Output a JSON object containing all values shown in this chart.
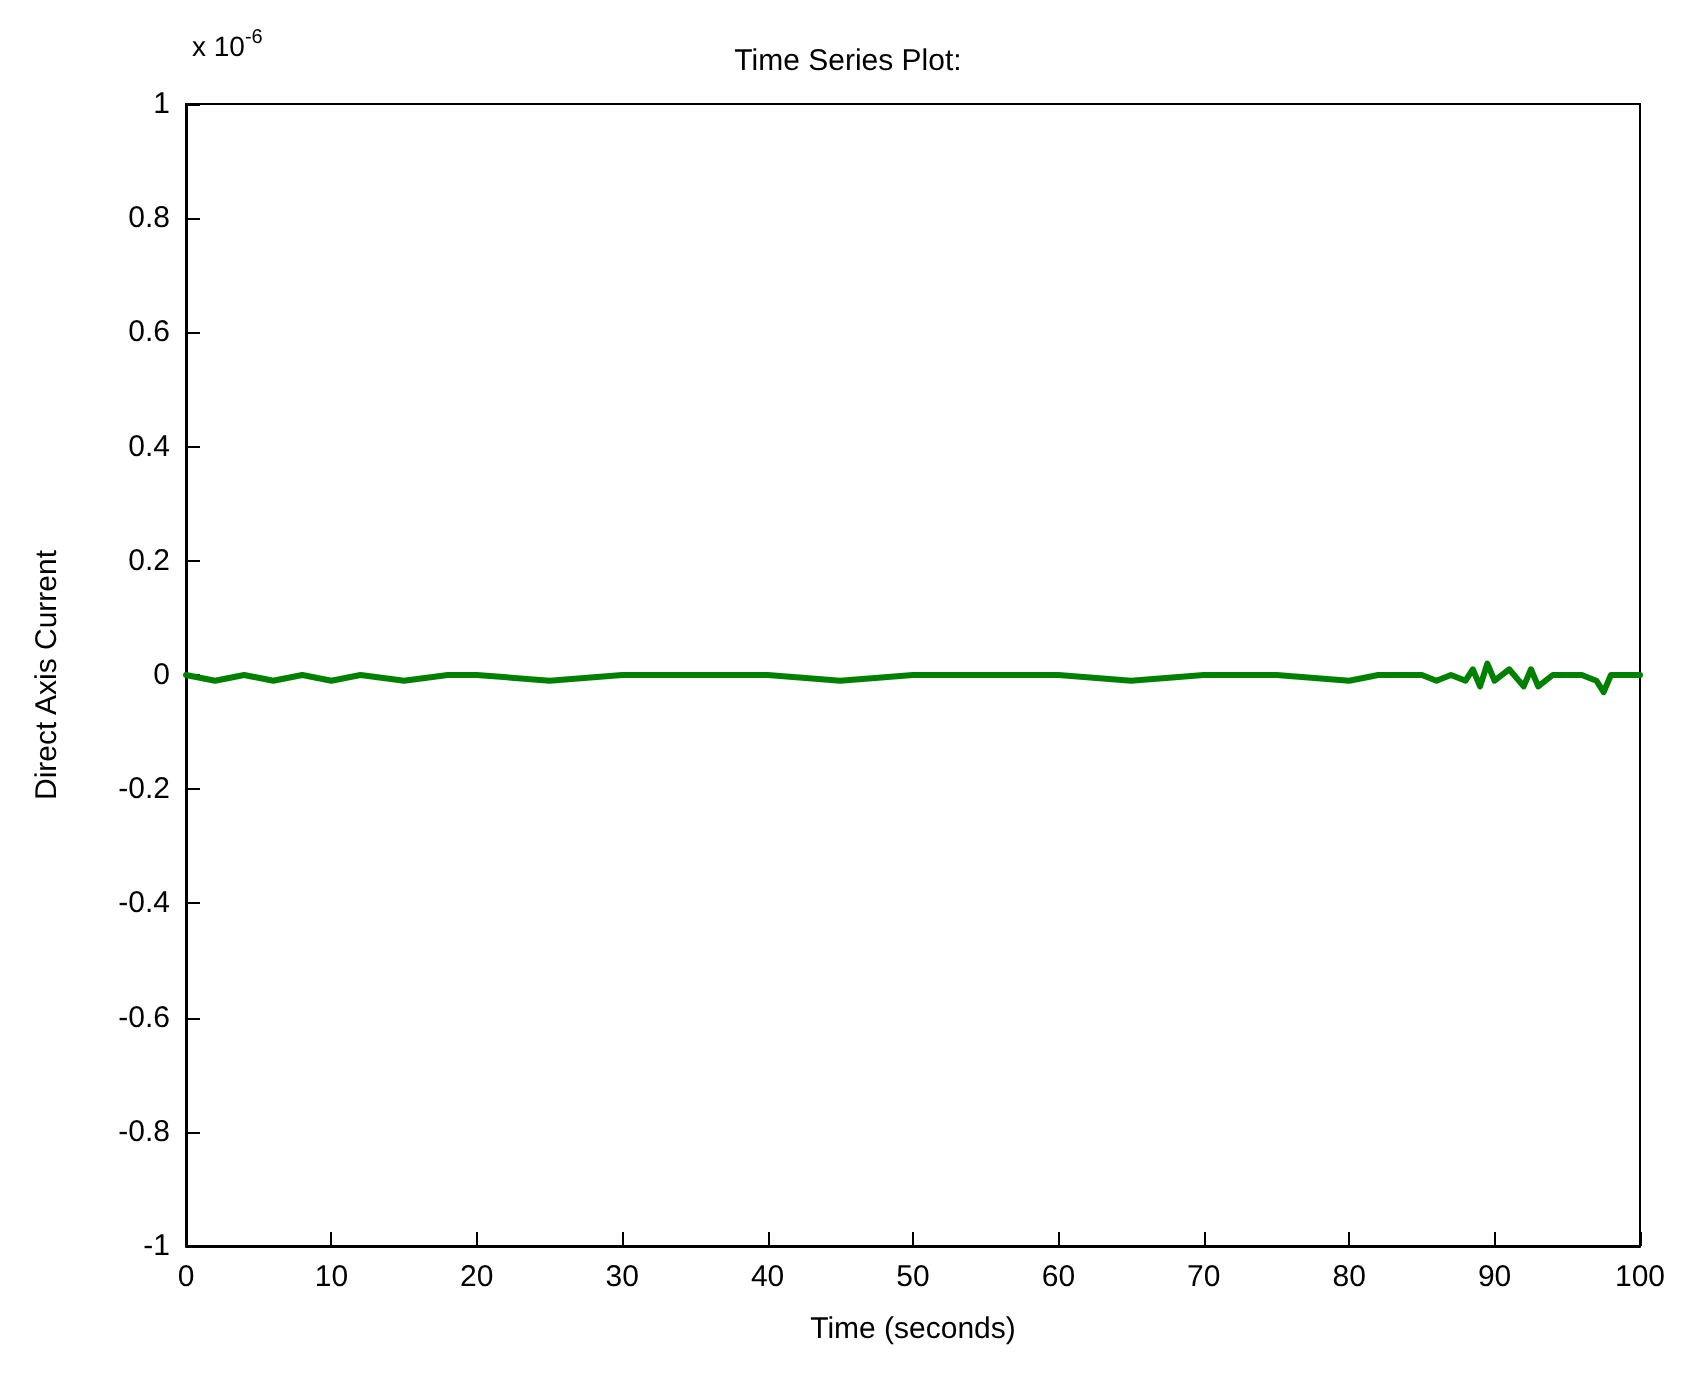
{
  "chart_data": {
    "type": "line",
    "title": "Time Series Plot:",
    "xlabel": "Time (seconds)",
    "ylabel": "Direct Axis Current",
    "annotations": [
      "x 10$^{-6}$"
    ],
    "x": [
      0,
      2,
      4,
      6,
      8,
      10,
      12,
      15,
      18,
      20,
      25,
      30,
      35,
      40,
      45,
      50,
      55,
      60,
      65,
      70,
      75,
      80,
      82,
      84,
      85,
      86,
      87,
      88,
      88.5,
      89,
      89.5,
      90,
      91,
      92,
      92.5,
      93,
      94,
      95,
      96,
      97,
      97.5,
      98,
      99,
      100
    ],
    "series": [
      {
        "color": "#008000",
        "values": [
          0,
          -0.01,
          0,
          -0.01,
          0,
          -0.01,
          0,
          -0.01,
          0,
          0,
          -0.01,
          0,
          0,
          0,
          -0.01,
          0,
          0,
          0,
          -0.01,
          0,
          0,
          -0.01,
          0,
          0,
          0,
          -0.01,
          0,
          -0.01,
          0.01,
          -0.02,
          0.02,
          -0.01,
          0.01,
          -0.02,
          0.01,
          -0.02,
          0,
          0,
          0,
          -0.01,
          -0.03,
          0,
          0,
          0
        ]
      }
    ],
    "xlim": [
      0,
      100
    ],
    "xticks": [
      0,
      10,
      20,
      30,
      40,
      50,
      60,
      70,
      80,
      90,
      100
    ],
    "ylim": [
      -1,
      1
    ],
    "yticks": [
      -1,
      -0.8,
      -0.6,
      -0.4,
      -0.2,
      0,
      0.2,
      0.4,
      0.6,
      0.8,
      1
    ],
    "grid": false,
    "line_style": "solid",
    "marker": "none"
  }
}
